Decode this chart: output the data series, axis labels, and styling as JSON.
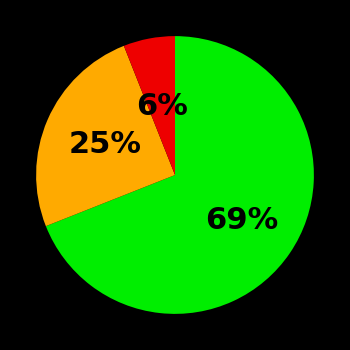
{
  "slices_ordered": [
    69,
    25,
    6
  ],
  "colors_ordered": [
    "#00ee00",
    "#ffaa00",
    "#ee0000"
  ],
  "labels_ordered": [
    "69%",
    "25%",
    "6%"
  ],
  "background_color": "#000000",
  "startangle": 90,
  "label_fontsize": 22,
  "label_color": "#000000",
  "label_fontweight": "bold",
  "label_radii": [
    0.58,
    0.55,
    0.5
  ]
}
